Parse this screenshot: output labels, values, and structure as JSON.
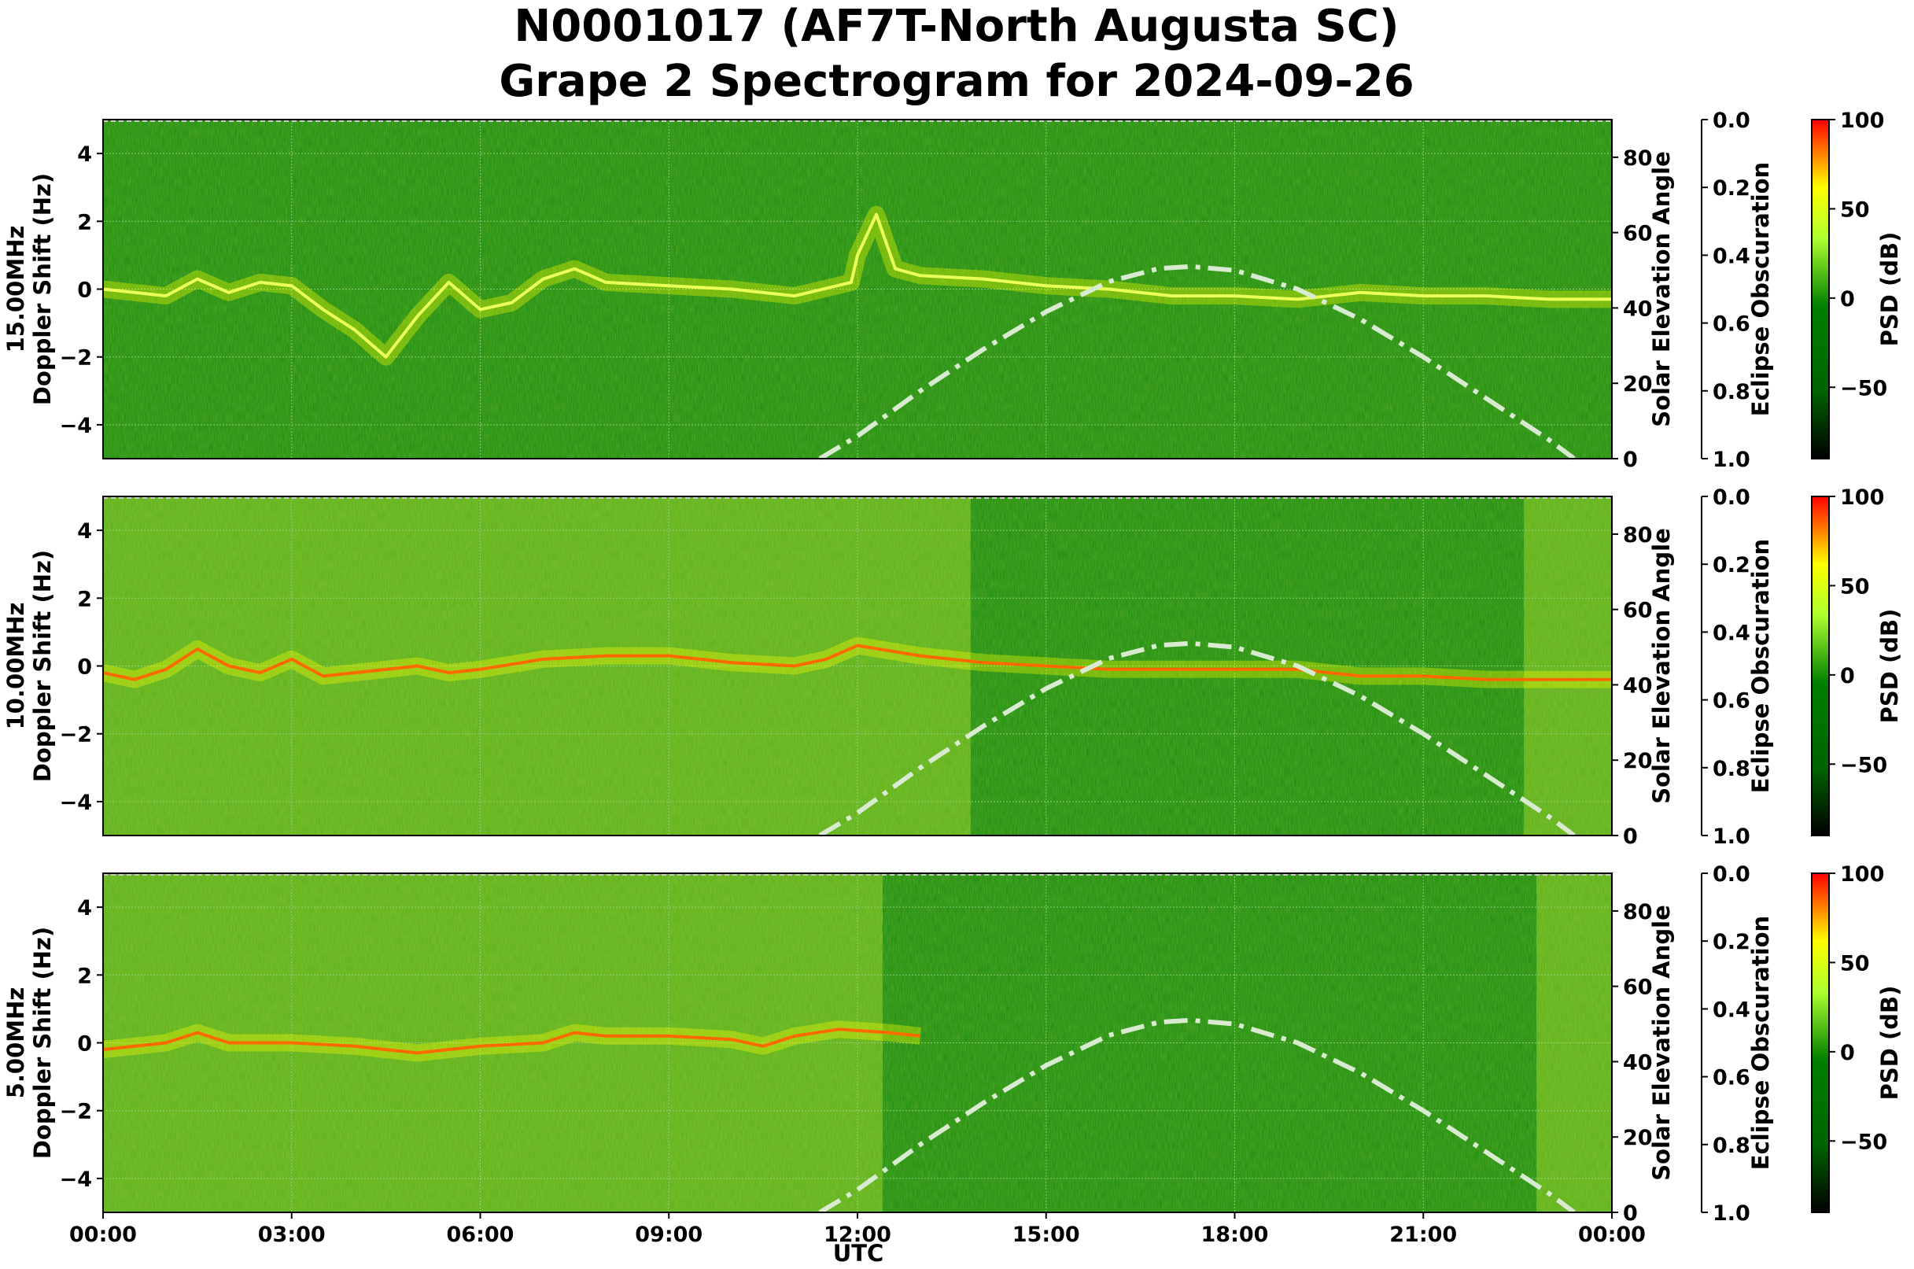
{
  "chart_data": {
    "type": "heatmap",
    "title": "N0001017 (AF7T-North Augusta SC)",
    "subtitle": "Grape 2 Spectrogram for 2024-09-26",
    "xlabel": "UTC",
    "x_ticks": [
      "00:00",
      "03:00",
      "06:00",
      "09:00",
      "12:00",
      "15:00",
      "18:00",
      "21:00",
      "00:00"
    ],
    "grid": true,
    "colorbar": {
      "label": "PSD (dB)",
      "range": [
        -90,
        100
      ],
      "ticks": [
        "100",
        "50",
        "0",
        "−50"
      ],
      "tick_values": [
        100,
        50,
        0,
        -50
      ],
      "colors": [
        "#000000",
        "#006400",
        "#008000",
        "#adff2f",
        "#ffff00",
        "#ff0000"
      ]
    },
    "panels": [
      {
        "ylabel_freq": "15.00MHz",
        "ylabel": "Doppler Shift (Hz)",
        "ylim": [
          -5,
          5
        ],
        "yticks": [
          "4",
          "2",
          "0",
          "−2",
          "−4"
        ],
        "ytick_values": [
          4,
          2,
          0,
          -2,
          -4
        ],
        "solar_label": "Solar Elevation Angle",
        "solar_ylim": [
          0,
          90
        ],
        "solar_ticks": [
          "80",
          "60",
          "40",
          "20",
          "0"
        ],
        "solar_tick_values": [
          80,
          60,
          40,
          20,
          0
        ],
        "eclipse_label": "Eclipse Obscuration",
        "eclipse_ticks": [
          "0.0",
          "0.2",
          "0.4",
          "0.6",
          "0.8",
          "1.0"
        ],
        "eclipse_tick_values": [
          0.0,
          0.2,
          0.4,
          0.6,
          0.8,
          1.0
        ],
        "background": "#1a8a10",
        "trace_hz": [
          [
            0,
            0.0
          ],
          [
            0.5,
            -0.1
          ],
          [
            1,
            -0.2
          ],
          [
            1.5,
            0.3
          ],
          [
            2,
            -0.1
          ],
          [
            2.5,
            0.2
          ],
          [
            3,
            0.1
          ],
          [
            3.5,
            -0.6
          ],
          [
            4,
            -1.2
          ],
          [
            4.5,
            -2.0
          ],
          [
            5,
            -0.8
          ],
          [
            5.5,
            0.2
          ],
          [
            6,
            -0.6
          ],
          [
            6.5,
            -0.4
          ],
          [
            7,
            0.3
          ],
          [
            7.5,
            0.6
          ],
          [
            8,
            0.2
          ],
          [
            9,
            0.1
          ],
          [
            10,
            0.0
          ],
          [
            11,
            -0.2
          ],
          [
            11.9,
            0.2
          ],
          [
            12,
            1.0
          ],
          [
            12.3,
            2.2
          ],
          [
            12.6,
            0.6
          ],
          [
            13,
            0.4
          ],
          [
            14,
            0.3
          ],
          [
            15,
            0.1
          ],
          [
            16,
            0.0
          ],
          [
            17,
            -0.2
          ],
          [
            18,
            -0.2
          ],
          [
            19,
            -0.3
          ],
          [
            20,
            -0.1
          ],
          [
            21,
            -0.2
          ],
          [
            22,
            -0.2
          ],
          [
            23,
            -0.3
          ],
          [
            24,
            -0.3
          ]
        ]
      },
      {
        "ylabel_freq": "10.00MHz",
        "ylabel": "Doppler Shift (Hz)",
        "ylim": [
          -5,
          5
        ],
        "yticks": [
          "4",
          "2",
          "0",
          "−2",
          "−4"
        ],
        "ytick_values": [
          4,
          2,
          0,
          -2,
          -4
        ],
        "solar_label": "Solar Elevation Angle",
        "solar_ylim": [
          0,
          90
        ],
        "solar_ticks": [
          "80",
          "60",
          "40",
          "20",
          "0"
        ],
        "solar_tick_values": [
          80,
          60,
          40,
          20,
          0
        ],
        "eclipse_label": "Eclipse Obscuration",
        "eclipse_ticks": [
          "0.0",
          "0.2",
          "0.4",
          "0.6",
          "0.8",
          "1.0"
        ],
        "eclipse_tick_values": [
          0.0,
          0.2,
          0.4,
          0.6,
          0.8,
          1.0
        ],
        "background": "#5aae1c",
        "trace_hz": [
          [
            0,
            -0.2
          ],
          [
            0.5,
            -0.4
          ],
          [
            1,
            -0.1
          ],
          [
            1.5,
            0.5
          ],
          [
            2,
            0.0
          ],
          [
            2.5,
            -0.2
          ],
          [
            3,
            0.2
          ],
          [
            3.5,
            -0.3
          ],
          [
            4,
            -0.2
          ],
          [
            5,
            0.0
          ],
          [
            5.5,
            -0.2
          ],
          [
            6,
            -0.1
          ],
          [
            7,
            0.2
          ],
          [
            8,
            0.3
          ],
          [
            9,
            0.3
          ],
          [
            10,
            0.1
          ],
          [
            11,
            0.0
          ],
          [
            11.5,
            0.2
          ],
          [
            12,
            0.6
          ],
          [
            13,
            0.3
          ],
          [
            14,
            0.1
          ],
          [
            15,
            0.0
          ],
          [
            16,
            -0.1
          ],
          [
            17,
            -0.1
          ],
          [
            18,
            -0.1
          ],
          [
            19,
            -0.1
          ],
          [
            20,
            -0.3
          ],
          [
            21,
            -0.3
          ],
          [
            22,
            -0.4
          ],
          [
            23,
            -0.4
          ],
          [
            24,
            -0.4
          ]
        ]
      },
      {
        "ylabel_freq": "5.00MHz",
        "ylabel": "Doppler Shift (Hz)",
        "ylim": [
          -5,
          5
        ],
        "yticks": [
          "4",
          "2",
          "0",
          "−2",
          "−4"
        ],
        "ytick_values": [
          4,
          2,
          0,
          -2,
          -4
        ],
        "solar_label": "Solar Elevation Angle",
        "solar_ylim": [
          0,
          90
        ],
        "solar_ticks": [
          "80",
          "60",
          "40",
          "20",
          "0"
        ],
        "solar_tick_values": [
          80,
          60,
          40,
          20,
          0
        ],
        "eclipse_label": "Eclipse Obscuration",
        "eclipse_ticks": [
          "0.0",
          "0.2",
          "0.4",
          "0.6",
          "0.8",
          "1.0"
        ],
        "eclipse_tick_values": [
          0.0,
          0.2,
          0.4,
          0.6,
          0.8,
          1.0
        ],
        "background": "#5aae1c",
        "trace_hz": [
          [
            0,
            -0.2
          ],
          [
            1,
            0.0
          ],
          [
            1.5,
            0.3
          ],
          [
            2,
            0.0
          ],
          [
            3,
            0.0
          ],
          [
            4,
            -0.1
          ],
          [
            5,
            -0.3
          ],
          [
            6,
            -0.1
          ],
          [
            7,
            0.0
          ],
          [
            7.5,
            0.3
          ],
          [
            8,
            0.2
          ],
          [
            9,
            0.2
          ],
          [
            10,
            0.1
          ],
          [
            10.5,
            -0.1
          ],
          [
            11,
            0.2
          ],
          [
            11.7,
            0.4
          ],
          [
            12.5,
            0.3
          ],
          [
            13,
            0.2
          ]
        ]
      }
    ],
    "solar_elevation_deg": [
      [
        11.4,
        0
      ],
      [
        12,
        6
      ],
      [
        13,
        18
      ],
      [
        14,
        29
      ],
      [
        15,
        39
      ],
      [
        16,
        47
      ],
      [
        16.8,
        50.5
      ],
      [
        17.3,
        51
      ],
      [
        18,
        50
      ],
      [
        19,
        45
      ],
      [
        20,
        37
      ],
      [
        21,
        27
      ],
      [
        22,
        16
      ],
      [
        23,
        5
      ],
      [
        23.4,
        0
      ]
    ]
  }
}
